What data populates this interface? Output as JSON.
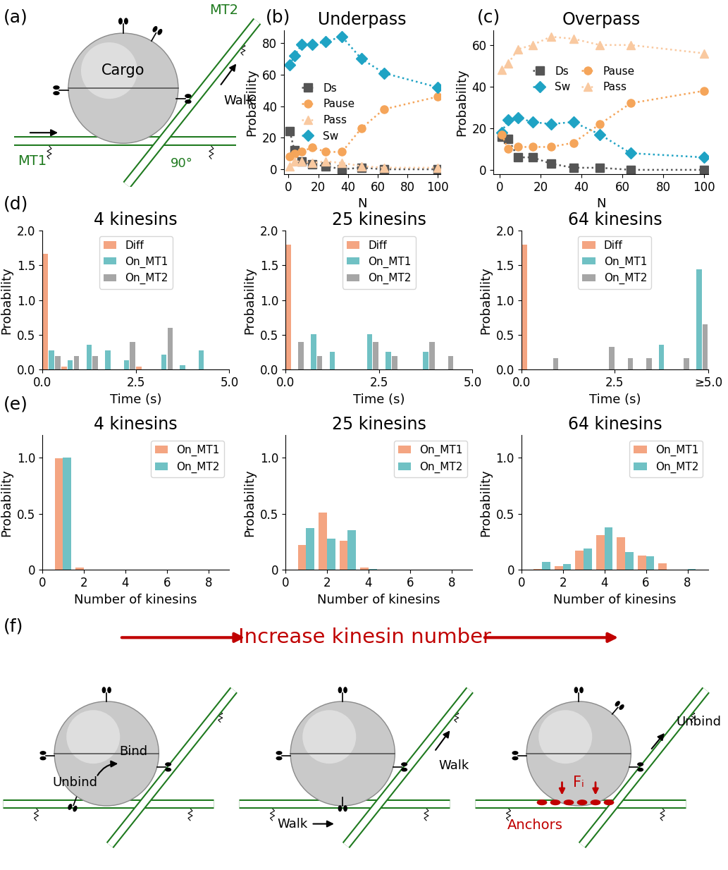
{
  "panel_labels": [
    "(a)",
    "(b)",
    "(c)",
    "(d)",
    "(e)",
    "(f)"
  ],
  "diagram_a": {
    "cargo": "Cargo",
    "mt1": "MT1",
    "mt2": "MT2",
    "walk": "Walk",
    "angle": "90°"
  },
  "diagram_f": {
    "heading": "Increase kinesin number",
    "scene1": {
      "unbind": "Unbind",
      "bind": "Bind"
    },
    "scene2": {
      "walk_mt1": "Walk",
      "walk_mt2": "Walk"
    },
    "scene3": {
      "unbind": "Unbind",
      "force": "Fᵢ",
      "anchors": "Anchors"
    }
  },
  "chart_data": [
    {
      "type": "line",
      "title": "Underpass",
      "x_label": "N",
      "y_label": "Probability",
      "x": [
        1,
        4,
        9,
        16,
        25,
        36,
        49,
        64,
        100
      ],
      "series": [
        {
          "name": "Ds",
          "color": "#555555",
          "marker": "square",
          "line_style": "dotted",
          "values": [
            24,
            12,
            5,
            3,
            2,
            0,
            1,
            0,
            0
          ]
        },
        {
          "name": "Pause",
          "color": "#f5a55a",
          "marker": "circle",
          "line_style": "dotted",
          "values": [
            8,
            10,
            11,
            14,
            11,
            11,
            26,
            38,
            46
          ]
        },
        {
          "name": "Pass",
          "color": "#f9c9a0",
          "marker": "triangle",
          "line_style": "dotted",
          "values": [
            2,
            5,
            5,
            4,
            5,
            4,
            2,
            1,
            1
          ]
        },
        {
          "name": "Sw",
          "color": "#1fa3c4",
          "marker": "diamond",
          "line_style": "dotted",
          "values": [
            66,
            72,
            79,
            79,
            81,
            84,
            70,
            61,
            52
          ]
        }
      ],
      "xlim": [
        -3,
        102
      ],
      "ylim": [
        -3,
        88
      ],
      "xticks": [
        0,
        20,
        40,
        60,
        80,
        100
      ],
      "yticks": [
        0,
        20,
        40,
        60,
        80
      ],
      "legend": "center left"
    },
    {
      "type": "line",
      "title": "Overpass",
      "x_label": "N",
      "y_label": "Probability",
      "x": [
        1,
        4,
        9,
        16,
        25,
        36,
        49,
        64,
        100
      ],
      "series": [
        {
          "name": "Ds",
          "color": "#555555",
          "marker": "square",
          "line_style": "dotted",
          "values": [
            16,
            15,
            6,
            6,
            3,
            1,
            1,
            0,
            0
          ]
        },
        {
          "name": "Sw",
          "color": "#1fa3c4",
          "marker": "diamond",
          "line_style": "dotted",
          "values": [
            18,
            24,
            25,
            23,
            22,
            23,
            17,
            8,
            6
          ]
        },
        {
          "name": "Pause",
          "color": "#f5a55a",
          "marker": "circle",
          "line_style": "dotted",
          "values": [
            17,
            10,
            11,
            11,
            11,
            13,
            22,
            32,
            38
          ]
        },
        {
          "name": "Pass",
          "color": "#f9c9a0",
          "marker": "triangle",
          "line_style": "dotted",
          "values": [
            48,
            51,
            58,
            60,
            64,
            63,
            60,
            60,
            56
          ]
        }
      ],
      "xlim": [
        -3,
        102
      ],
      "ylim": [
        -2,
        67
      ],
      "xticks": [
        0,
        20,
        40,
        60,
        80,
        100
      ],
      "yticks": [
        0,
        20,
        40,
        60
      ],
      "legend": "center"
    },
    {
      "type": "histogram",
      "title": "4 kinesins",
      "x_label": "Time (s)",
      "y_label": "Probability",
      "bins": [
        0,
        0.5,
        1,
        1.5,
        2,
        2.5,
        3,
        3.5,
        4,
        4.5,
        5
      ],
      "series": [
        {
          "name": "Diff",
          "color": "#f4a582",
          "values": [
            1.67,
            0.05,
            0,
            0,
            0,
            0.05,
            0,
            0,
            0,
            0
          ]
        },
        {
          "name": "On_MT1",
          "color": "#70c1c4",
          "values": [
            0.28,
            0.14,
            0.36,
            0.28,
            0.14,
            0,
            0.22,
            0.07,
            0.28,
            0
          ]
        },
        {
          "name": "On_MT2",
          "color": "#a6a6a6",
          "values": [
            0.2,
            0.2,
            0.2,
            0,
            0.4,
            0,
            0.6,
            0,
            0,
            0
          ]
        }
      ],
      "xlim": [
        0,
        5
      ],
      "ylim": [
        0,
        2
      ],
      "xticks": [
        {
          "value": 0,
          "label": "0.0"
        },
        2.5,
        {
          "value": 5,
          "label": "5.0"
        }
      ],
      "yticks": [
        {
          "value": 0,
          "label": "0.0"
        },
        0.5,
        {
          "value": 1,
          "label": "1.0"
        },
        1.5,
        {
          "value": 2,
          "label": "2.0"
        }
      ],
      "legend": "upper center"
    },
    {
      "type": "histogram",
      "title": "25 kinesins",
      "x_label": "Time (s)",
      "y_label": "Probability",
      "bins": [
        0,
        0.5,
        1,
        1.5,
        2,
        2.5,
        3,
        3.5,
        4,
        4.5,
        5
      ],
      "series": [
        {
          "name": "Diff",
          "color": "#f4a582",
          "values": [
            1.8,
            0,
            0,
            0,
            0,
            0,
            0,
            0,
            0,
            0
          ]
        },
        {
          "name": "On_MT1",
          "color": "#70c1c4",
          "values": [
            0,
            0.51,
            0.26,
            0,
            0.51,
            0.26,
            0,
            0.26,
            0,
            0
          ]
        },
        {
          "name": "On_MT2",
          "color": "#a6a6a6",
          "values": [
            0.4,
            0.2,
            0,
            0,
            0.4,
            0.2,
            0,
            0.4,
            0.2,
            0
          ]
        }
      ],
      "xlim": [
        0,
        5
      ],
      "ylim": [
        0,
        2
      ],
      "xticks": [
        {
          "value": 0,
          "label": "0.0"
        },
        2.5,
        {
          "value": 5,
          "label": "5.0"
        }
      ],
      "yticks": [
        {
          "value": 0,
          "label": "0.0"
        },
        0.5,
        {
          "value": 1,
          "label": "1.0"
        },
        1.5,
        {
          "value": 2,
          "label": "2.0"
        }
      ],
      "legend": "upper center"
    },
    {
      "type": "histogram",
      "title": "64 kinesins",
      "x_label": "Time (s)",
      "y_label": "Probability",
      "bins": [
        0,
        0.5,
        1,
        1.5,
        2,
        2.5,
        3,
        3.5,
        4,
        4.5,
        5
      ],
      "series": [
        {
          "name": "Diff",
          "color": "#f4a582",
          "values": [
            1.8,
            0,
            0,
            0,
            0,
            0,
            0,
            0,
            0,
            0
          ]
        },
        {
          "name": "On_MT1",
          "color": "#70c1c4",
          "values": [
            0,
            0,
            0,
            0,
            0,
            0,
            0,
            0.36,
            0,
            1.44
          ]
        },
        {
          "name": "On_MT2",
          "color": "#a6a6a6",
          "values": [
            0,
            0.17,
            0,
            0,
            0.33,
            0.17,
            0.17,
            0,
            0.17,
            0.65
          ]
        }
      ],
      "xlim": [
        0,
        5
      ],
      "ylim": [
        0,
        2
      ],
      "xticks": [
        {
          "value": 0,
          "label": "0.0"
        },
        2.5,
        {
          "value": 5,
          "label": "≥5.0"
        }
      ],
      "yticks": [
        {
          "value": 0,
          "label": "0.0"
        },
        0.5,
        {
          "value": 1,
          "label": "1.0"
        },
        1.5,
        {
          "value": 2,
          "label": "2.0"
        }
      ],
      "legend": "upper center"
    },
    {
      "type": "bar",
      "title": "4 kinesins",
      "x_label": "Number of kinesins",
      "y_label": "Probability",
      "x": [
        0,
        1,
        2,
        3,
        4,
        5,
        6,
        7,
        8
      ],
      "series": [
        {
          "name": "On_MT1",
          "color": "#f4a582",
          "values": [
            0,
            0.99,
            0.02,
            0,
            0,
            0,
            0,
            0,
            0
          ]
        },
        {
          "name": "On_MT2",
          "color": "#70c1c4",
          "values": [
            0,
            1.0,
            0,
            0,
            0,
            0,
            0,
            0,
            0
          ]
        }
      ],
      "xlim": [
        0,
        9
      ],
      "ylim": [
        0,
        1.2
      ],
      "xticks": [
        0,
        2,
        4,
        6,
        8
      ],
      "yticks": [
        0,
        0.5,
        {
          "value": 1,
          "label": "1.0"
        }
      ],
      "legend": "upper right"
    },
    {
      "type": "bar",
      "title": "25 kinesins",
      "x_label": "Number of kinesins",
      "y_label": "Probability",
      "x": [
        0,
        1,
        2,
        3,
        4,
        5,
        6,
        7,
        8
      ],
      "series": [
        {
          "name": "On_MT1",
          "color": "#f4a582",
          "values": [
            0,
            0.22,
            0.51,
            0.26,
            0.02,
            0,
            0,
            0,
            0
          ]
        },
        {
          "name": "On_MT2",
          "color": "#70c1c4",
          "values": [
            0,
            0.37,
            0.28,
            0.35,
            0.01,
            0,
            0,
            0,
            0
          ]
        }
      ],
      "xlim": [
        0,
        9
      ],
      "ylim": [
        0,
        1.2
      ],
      "xticks": [
        0,
        2,
        4,
        6,
        8
      ],
      "yticks": [
        0,
        0.5,
        {
          "value": 1,
          "label": "1.0"
        }
      ],
      "legend": "upper right"
    },
    {
      "type": "bar",
      "title": "64 kinesins",
      "x_label": "Number of kinesins",
      "y_label": "Probability",
      "x": [
        0,
        1,
        2,
        3,
        4,
        5,
        6,
        7,
        8
      ],
      "series": [
        {
          "name": "On_MT1",
          "color": "#f4a582",
          "values": [
            0,
            0.01,
            0.03,
            0.17,
            0.31,
            0.29,
            0.13,
            0.06,
            0
          ]
        },
        {
          "name": "On_MT2",
          "color": "#70c1c4",
          "values": [
            0,
            0.07,
            0.05,
            0.19,
            0.38,
            0.16,
            0.12,
            0,
            0.01
          ]
        }
      ],
      "xlim": [
        0,
        9
      ],
      "ylim": [
        0,
        1.2
      ],
      "xticks": [
        0,
        2,
        4,
        6,
        8
      ],
      "yticks": [
        0,
        0.5,
        {
          "value": 1,
          "label": "1.0"
        }
      ],
      "legend": "upper right"
    }
  ]
}
